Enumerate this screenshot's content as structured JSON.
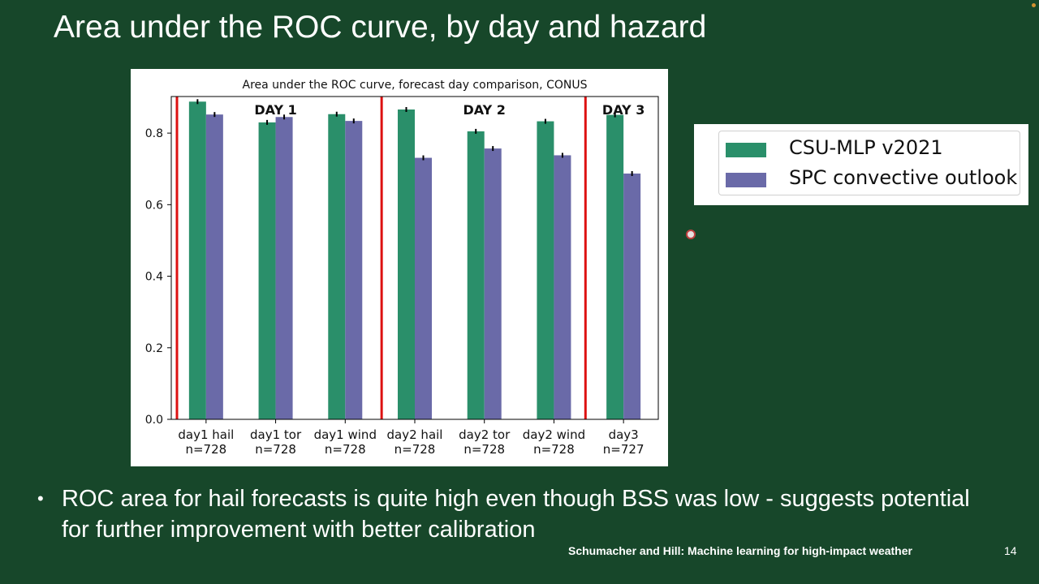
{
  "slide": {
    "title": "Area under the ROC curve, by day and hazard",
    "bullet": "ROC area for hail forecasts is quite high even though BSS was low - suggests potential for further improvement with better calibration",
    "footer": "Schumacher and Hill: Machine learning for high-impact weather",
    "page_number": "14"
  },
  "legend": {
    "items": [
      {
        "label": "CSU-MLP v2021",
        "color": "#2a8f6a"
      },
      {
        "label": "SPC convective outlook",
        "color": "#6a6aa8"
      }
    ]
  },
  "chart_data": {
    "type": "bar",
    "title": "Area under the ROC curve, forecast day comparison, CONUS",
    "xlabel": "",
    "ylabel": "",
    "ylim": [
      0,
      0.9
    ],
    "yticks": [
      0.0,
      0.2,
      0.4,
      0.6,
      0.8
    ],
    "ytick_labels": [
      "0.0",
      "0.2",
      "0.4",
      "0.6",
      "0.8"
    ],
    "categories": [
      "day1 hail",
      "day1 tor",
      "day1 wind",
      "day2 hail",
      "day2 tor",
      "day2 wind",
      "day3"
    ],
    "category_sublabels": [
      "n=728",
      "n=728",
      "n=728",
      "n=728",
      "n=728",
      "n=728",
      "n=727"
    ],
    "series": [
      {
        "name": "CSU-MLP v2021",
        "color": "#2a8f6a",
        "values": [
          0.888,
          0.83,
          0.853,
          0.866,
          0.805,
          0.833,
          0.851
        ]
      },
      {
        "name": "SPC convective outlook",
        "color": "#6a6aa8",
        "values": [
          0.852,
          0.845,
          0.834,
          0.731,
          0.757,
          0.738,
          0.687
        ]
      }
    ],
    "day_groups": [
      {
        "label": "DAY 1",
        "start": 0,
        "end": 2
      },
      {
        "label": "DAY 2",
        "start": 3,
        "end": 5
      },
      {
        "label": "DAY 3",
        "start": 6,
        "end": 6
      }
    ],
    "separator_color": "#dd1111"
  }
}
